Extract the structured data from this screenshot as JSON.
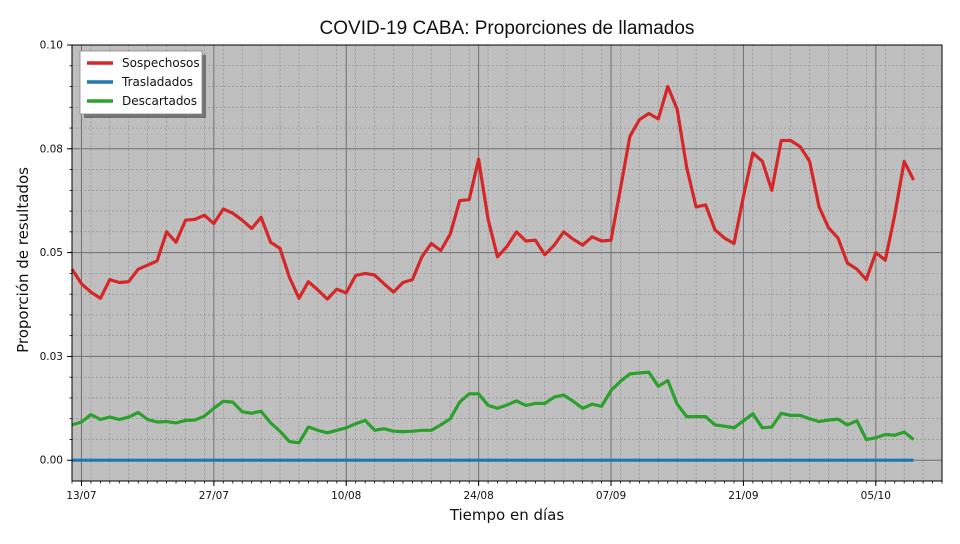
{
  "chart_data": {
    "type": "line",
    "title": "COVID-19 CABA: Proporciones de llamados",
    "xlabel": "Tiempo en días",
    "ylabel": "Proporción de resultados",
    "x_start": "2020-07-12",
    "x_end": "2020-10-12",
    "ylim": [
      -0.005,
      0.1
    ],
    "yticks": [
      0.0,
      0.025,
      0.05,
      0.075,
      0.1
    ],
    "ytick_labels": [
      "0.00",
      "0.03",
      "0.05",
      "0.08",
      "0.10"
    ],
    "xticks": [
      "2020-07-13",
      "2020-07-27",
      "2020-08-10",
      "2020-08-24",
      "2020-09-07",
      "2020-09-21",
      "2020-10-05"
    ],
    "xtick_labels": [
      "13/07",
      "27/07",
      "10/08",
      "24/08",
      "07/09",
      "21/09",
      "05/10"
    ],
    "grid": true,
    "background": "#bfbfbf",
    "legend": {
      "position": "top-left"
    },
    "x": [
      "2020-07-12",
      "2020-07-13",
      "2020-07-14",
      "2020-07-15",
      "2020-07-16",
      "2020-07-17",
      "2020-07-18",
      "2020-07-19",
      "2020-07-20",
      "2020-07-21",
      "2020-07-22",
      "2020-07-23",
      "2020-07-24",
      "2020-07-25",
      "2020-07-26",
      "2020-07-27",
      "2020-07-28",
      "2020-07-29",
      "2020-07-30",
      "2020-07-31",
      "2020-08-01",
      "2020-08-02",
      "2020-08-03",
      "2020-08-04",
      "2020-08-05",
      "2020-08-06",
      "2020-08-07",
      "2020-08-08",
      "2020-08-09",
      "2020-08-10",
      "2020-08-11",
      "2020-08-12",
      "2020-08-13",
      "2020-08-14",
      "2020-08-15",
      "2020-08-16",
      "2020-08-17",
      "2020-08-18",
      "2020-08-19",
      "2020-08-20",
      "2020-08-21",
      "2020-08-22",
      "2020-08-23",
      "2020-08-24",
      "2020-08-25",
      "2020-08-26",
      "2020-08-27",
      "2020-08-28",
      "2020-08-29",
      "2020-08-30",
      "2020-08-31",
      "2020-09-01",
      "2020-09-02",
      "2020-09-03",
      "2020-09-04",
      "2020-09-05",
      "2020-09-06",
      "2020-09-07",
      "2020-09-08",
      "2020-09-09",
      "2020-09-10",
      "2020-09-11",
      "2020-09-12",
      "2020-09-13",
      "2020-09-14",
      "2020-09-15",
      "2020-09-16",
      "2020-09-17",
      "2020-09-18",
      "2020-09-19",
      "2020-09-20",
      "2020-09-21",
      "2020-09-22",
      "2020-09-23",
      "2020-09-24",
      "2020-09-25",
      "2020-09-26",
      "2020-09-27",
      "2020-09-28",
      "2020-09-29",
      "2020-09-30",
      "2020-10-01",
      "2020-10-02",
      "2020-10-03",
      "2020-10-04",
      "2020-10-05",
      "2020-10-06",
      "2020-10-07",
      "2020-10-08",
      "2020-10-09"
    ],
    "series": [
      {
        "name": "Sospechosos",
        "color": "#d62728",
        "values": [
          0.046,
          0.0425,
          0.0405,
          0.039,
          0.0435,
          0.0428,
          0.043,
          0.046,
          0.047,
          0.048,
          0.055,
          0.0525,
          0.0578,
          0.058,
          0.059,
          0.057,
          0.0605,
          0.0595,
          0.0578,
          0.0558,
          0.0585,
          0.0525,
          0.051,
          0.044,
          0.039,
          0.043,
          0.041,
          0.0388,
          0.0412,
          0.0403,
          0.0445,
          0.045,
          0.0446,
          0.0425,
          0.0405,
          0.0428,
          0.0435,
          0.049,
          0.0522,
          0.0505,
          0.0545,
          0.0625,
          0.0628,
          0.0725,
          0.058,
          0.049,
          0.0515,
          0.055,
          0.0528,
          0.053,
          0.0495,
          0.0518,
          0.055,
          0.0532,
          0.0518,
          0.0538,
          0.0528,
          0.053,
          0.0655,
          0.078,
          0.082,
          0.0835,
          0.0822,
          0.09,
          0.0845,
          0.0705,
          0.061,
          0.0615,
          0.0555,
          0.0535,
          0.0522,
          0.0635,
          0.074,
          0.072,
          0.065,
          0.077,
          0.077,
          0.0755,
          0.072,
          0.061,
          0.056,
          0.0535,
          0.0475,
          0.046,
          0.0435,
          0.05,
          0.0482,
          0.059,
          0.072,
          0.0675
        ]
      },
      {
        "name": "Trasladados",
        "color": "#1f77b4",
        "values": [
          0,
          0,
          0,
          0,
          0,
          0,
          0,
          0,
          0,
          0,
          0,
          0,
          0,
          0,
          0,
          0,
          0,
          0,
          0,
          0,
          0,
          0,
          0,
          0,
          0,
          0,
          0,
          0,
          0,
          0,
          0,
          0,
          0,
          0,
          0,
          0,
          0,
          0,
          0,
          0,
          0,
          0,
          0,
          0,
          0,
          0,
          0,
          0,
          0,
          0,
          0,
          0,
          0,
          0,
          0,
          0,
          0,
          0,
          0,
          0,
          0,
          0,
          0,
          0,
          0,
          0,
          0,
          0,
          0,
          0,
          0,
          0,
          0,
          0,
          0,
          0,
          0,
          0,
          0,
          0,
          0,
          0,
          0,
          0,
          0,
          0,
          0,
          0,
          0,
          0
        ]
      },
      {
        "name": "Descartados",
        "color": "#2ca02c",
        "values": [
          0.0085,
          0.0092,
          0.011,
          0.0098,
          0.0104,
          0.0098,
          0.0104,
          0.0115,
          0.0098,
          0.0092,
          0.0093,
          0.009,
          0.0096,
          0.0097,
          0.0106,
          0.0125,
          0.0142,
          0.014,
          0.0117,
          0.0113,
          0.0118,
          0.009,
          0.007,
          0.0045,
          0.0042,
          0.008,
          0.0072,
          0.0066,
          0.0072,
          0.0078,
          0.0088,
          0.0096,
          0.0072,
          0.0076,
          0.007,
          0.0069,
          0.007,
          0.0072,
          0.0072,
          0.0085,
          0.01,
          0.014,
          0.016,
          0.016,
          0.0132,
          0.0125,
          0.0133,
          0.0143,
          0.0132,
          0.0137,
          0.0137,
          0.0152,
          0.0157,
          0.0142,
          0.0125,
          0.0135,
          0.013,
          0.0168,
          0.019,
          0.0208,
          0.021,
          0.0212,
          0.0178,
          0.0192,
          0.0135,
          0.0105,
          0.0105,
          0.0105,
          0.0085,
          0.0082,
          0.0078,
          0.0095,
          0.0112,
          0.0078,
          0.008,
          0.0113,
          0.0108,
          0.0108,
          0.01,
          0.0093,
          0.0097,
          0.0099,
          0.0085,
          0.0095,
          0.005,
          0.0054,
          0.0062,
          0.006,
          0.0068,
          0.005
        ]
      }
    ]
  }
}
